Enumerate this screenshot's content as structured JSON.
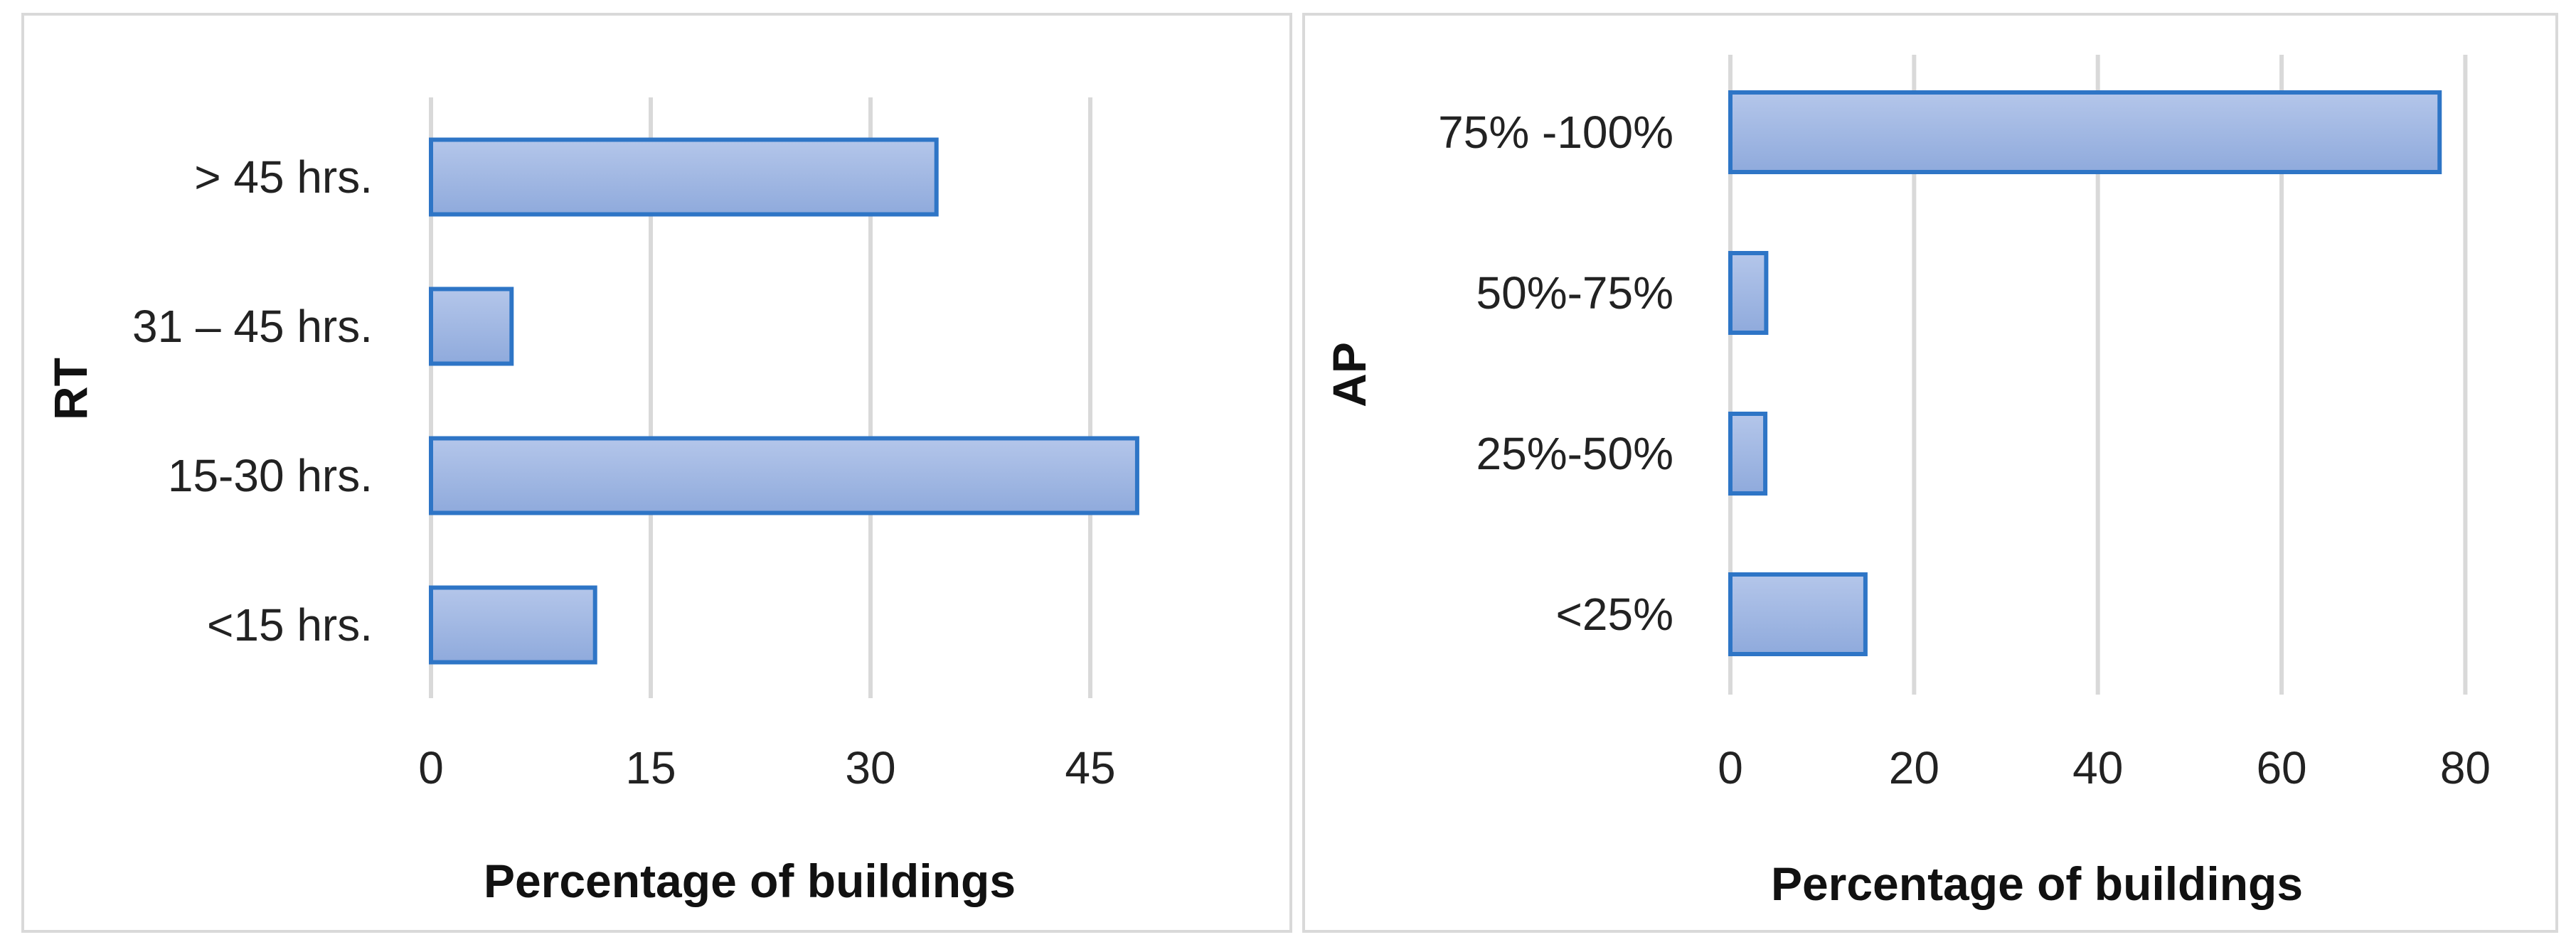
{
  "chart_data": [
    {
      "type": "bar",
      "orientation": "horizontal",
      "categories": [
        "> 45 hrs.",
        "31 – 45 hrs.",
        "15-30 hrs.",
        "<15 hrs."
      ],
      "values": [
        34.5,
        5.5,
        48.2,
        11.2
      ],
      "xlabel": "Percentage of buildings",
      "ylabel": "RT",
      "xlim": [
        0,
        50
      ],
      "xticks": [
        0,
        15,
        30,
        45
      ],
      "grid": "vertical",
      "bar_color": "#a4b9e4",
      "bar_edge_color": "#2e75c6"
    },
    {
      "type": "bar",
      "orientation": "horizontal",
      "categories": [
        "75% -100%",
        "50%-75%",
        "25%-50%",
        "<25%"
      ],
      "values": [
        77.2,
        3.9,
        3.8,
        14.7
      ],
      "xlabel": "Percentage of buildings",
      "ylabel": "AP",
      "xlim": [
        0,
        85
      ],
      "xticks": [
        0,
        20,
        40,
        60,
        80
      ],
      "grid": "vertical",
      "bar_color": "#a4b9e4",
      "bar_edge_color": "#2e75c6"
    }
  ]
}
